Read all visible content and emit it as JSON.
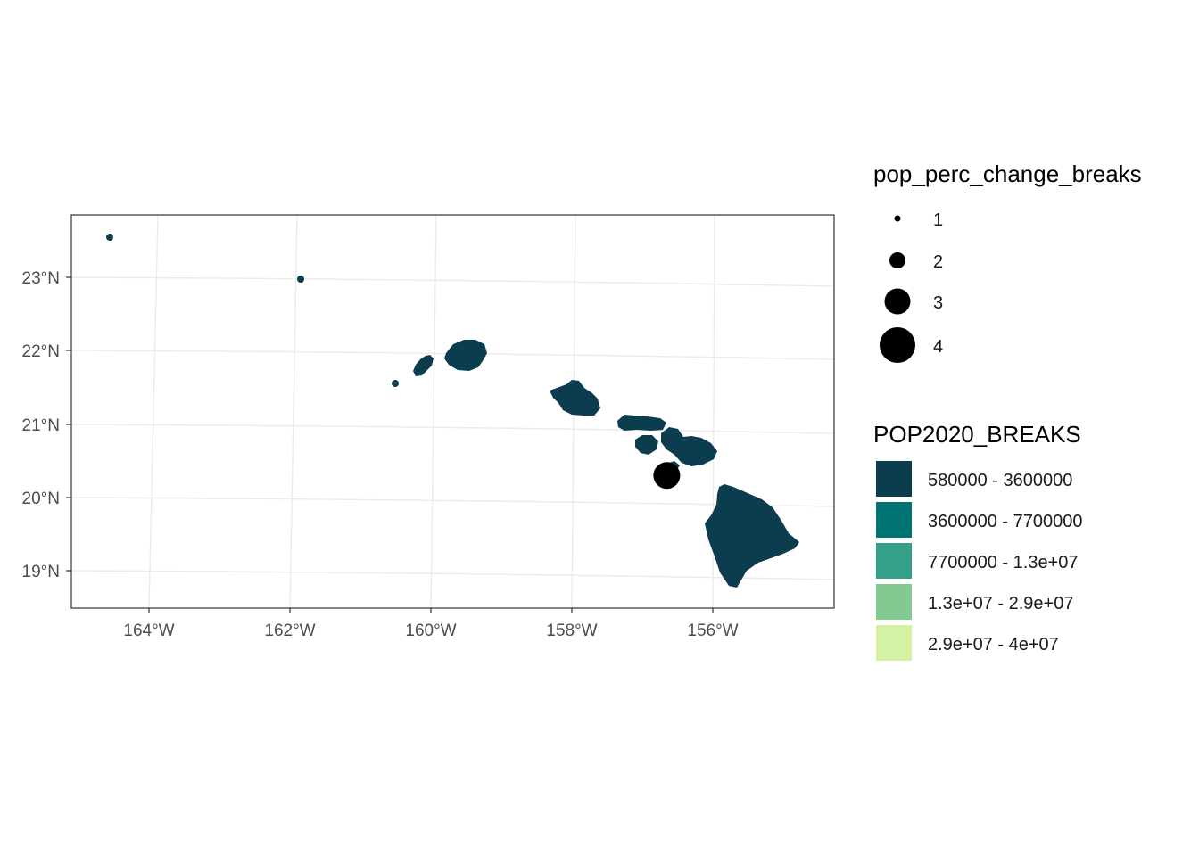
{
  "map": {
    "x_ticks": [
      "164°W",
      "162°W",
      "160°W",
      "158°W",
      "156°W"
    ],
    "y_ticks": [
      "23°N",
      "22°N",
      "21°N",
      "20°N",
      "19°N"
    ],
    "x_tick_values": [
      -164,
      -162,
      -160,
      -158,
      -156
    ],
    "y_tick_values": [
      23,
      22,
      21,
      20,
      19
    ],
    "lon_range": [
      -165.1,
      -154.3
    ],
    "lat_range": [
      18.56,
      23.9
    ],
    "region_fill": "#0b3d4f",
    "point_color": "#000000",
    "points": [
      {
        "lon": -156.67,
        "lat": 20.36,
        "size_class": 4
      }
    ]
  },
  "legend_size": {
    "title": "pop_perc_change_breaks",
    "items": [
      {
        "label": "1",
        "size_class": 1
      },
      {
        "label": "2",
        "size_class": 2
      },
      {
        "label": "3",
        "size_class": 3
      },
      {
        "label": "4",
        "size_class": 4
      }
    ]
  },
  "legend_fill": {
    "title": "POP2020_BREAKS",
    "items": [
      {
        "label": "580000 - 3600000",
        "color": "#0b3d4f"
      },
      {
        "label": "3600000 - 7700000",
        "color": "#007472"
      },
      {
        "label": "7700000 - 1.3e+07",
        "color": "#34a08a"
      },
      {
        "label": "1.3e+07 - 2.9e+07",
        "color": "#82c992"
      },
      {
        "label": "2.9e+07 - 4e+07",
        "color": "#d4f2a3"
      }
    ]
  }
}
